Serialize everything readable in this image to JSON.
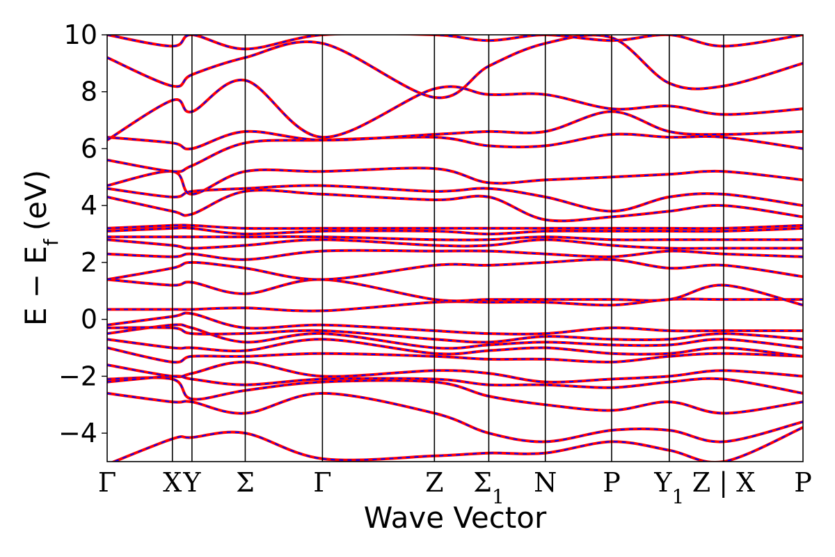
{
  "chart_data": {
    "type": "line",
    "title": "",
    "xlabel": "Wave Vector",
    "ylabel": "E − E",
    "ylabel_subscript": "f",
    "ylabel_unit": "(eV)",
    "ylim": [
      -5,
      10
    ],
    "yticks": [
      -4,
      -2,
      0,
      2,
      4,
      6,
      8,
      10
    ],
    "ytick_labels": [
      "−4",
      "−2",
      "0",
      "2",
      "4",
      "6",
      "8",
      "10"
    ],
    "xlim": [
      0,
      6.4
    ],
    "kpoints": [
      {
        "label": "Γ",
        "sub": "",
        "x": 0.0
      },
      {
        "label": "X",
        "sub": "",
        "x": 0.6
      },
      {
        "label": "Y",
        "sub": "",
        "x": 0.78
      },
      {
        "label": "Σ",
        "sub": "",
        "x": 1.27
      },
      {
        "label": "Γ",
        "sub": "",
        "x": 1.98
      },
      {
        "label": "Z",
        "sub": "",
        "x": 3.01
      },
      {
        "label": "Σ",
        "sub": "1",
        "x": 3.51
      },
      {
        "label": "N",
        "sub": "",
        "x": 4.03
      },
      {
        "label": "P",
        "sub": "",
        "x": 4.64
      },
      {
        "label": "Y",
        "sub": "1",
        "x": 5.17
      },
      {
        "label": "Z | X",
        "sub": "",
        "x": 5.67
      },
      {
        "label": "P",
        "sub": "",
        "x": 6.4
      }
    ],
    "series_colors": {
      "solid": "#ff0000",
      "dashed": "#0000ff"
    },
    "bands": [
      {
        "x": [
          0,
          0.6,
          0.78,
          1.27,
          1.98,
          3.01,
          3.51,
          4.03,
          4.64,
          5.17,
          5.67,
          6.4
        ],
        "y": [
          -5.1,
          -4.2,
          -4.15,
          -4.0,
          -4.9,
          -4.8,
          -4.7,
          -4.7,
          -4.3,
          -4.6,
          -5.0,
          -3.8
        ]
      },
      {
        "x": [
          0,
          0.6,
          0.78,
          1.27,
          1.98,
          3.01,
          3.51,
          4.03,
          4.64,
          5.17,
          5.67,
          6.4
        ],
        "y": [
          -2.6,
          -2.9,
          -2.9,
          -3.3,
          -2.6,
          -3.3,
          -4.0,
          -4.3,
          -3.9,
          -3.9,
          -4.3,
          -3.6
        ]
      },
      {
        "x": [
          0,
          0.6,
          0.78,
          1.27,
          1.98,
          3.01,
          3.51,
          4.03,
          4.64,
          5.17,
          5.67,
          6.4
        ],
        "y": [
          -2.1,
          -2.1,
          -2.8,
          -2.5,
          -2.2,
          -2.2,
          -2.7,
          -3.0,
          -3.2,
          -2.9,
          -3.3,
          -2.9
        ]
      },
      {
        "x": [
          0,
          0.6,
          0.78,
          1.27,
          1.98,
          3.01,
          3.51,
          4.03,
          4.64,
          5.17,
          5.67,
          6.4
        ],
        "y": [
          -2.2,
          -2.0,
          -2.1,
          -2.3,
          -2.1,
          -2.1,
          -2.3,
          -2.3,
          -2.4,
          -2.2,
          -2.1,
          -2.6
        ]
      },
      {
        "x": [
          0,
          0.6,
          0.78,
          1.27,
          1.98,
          3.01,
          3.51,
          4.03,
          4.64,
          5.17,
          5.67,
          6.4
        ],
        "y": [
          -1.6,
          -2.0,
          -1.9,
          -1.5,
          -2.0,
          -1.8,
          -1.9,
          -2.2,
          -2.1,
          -2.0,
          -1.8,
          -2.0
        ]
      },
      {
        "x": [
          0,
          0.6,
          0.78,
          1.27,
          1.98,
          3.01,
          3.51,
          4.03,
          4.64,
          5.17,
          5.67,
          6.4
        ],
        "y": [
          -1.0,
          -1.5,
          -1.3,
          -1.3,
          -1.2,
          -1.3,
          -1.4,
          -1.4,
          -1.5,
          -1.3,
          -1.2,
          -1.3
        ]
      },
      {
        "x": [
          0,
          0.6,
          0.78,
          1.27,
          1.98,
          3.01,
          3.51,
          4.03,
          4.64,
          5.17,
          5.67,
          6.4
        ],
        "y": [
          -0.7,
          -1.0,
          -1.0,
          -1.1,
          -0.7,
          -1.2,
          -1.1,
          -1.0,
          -1.2,
          -1.2,
          -1.0,
          -1.3
        ]
      },
      {
        "x": [
          0,
          0.6,
          0.78,
          1.27,
          1.98,
          3.01,
          3.51,
          4.03,
          4.64,
          5.17,
          5.67,
          6.4
        ],
        "y": [
          -0.5,
          -0.2,
          -0.3,
          -0.8,
          -0.5,
          -1.0,
          -0.9,
          -0.8,
          -0.9,
          -0.9,
          -0.7,
          -1.0
        ]
      },
      {
        "x": [
          0,
          0.6,
          0.78,
          1.27,
          1.98,
          3.01,
          3.51,
          4.03,
          4.64,
          5.17,
          5.67,
          6.4
        ],
        "y": [
          -0.3,
          -0.3,
          -0.5,
          -0.5,
          -0.4,
          -0.7,
          -0.8,
          -0.6,
          -0.7,
          -0.7,
          -0.5,
          -0.7
        ]
      },
      {
        "x": [
          0,
          0.6,
          0.78,
          1.27,
          1.98,
          3.01,
          3.51,
          4.03,
          4.64,
          5.17,
          5.67,
          6.4
        ],
        "y": [
          -0.2,
          0.1,
          0.2,
          -0.3,
          -0.2,
          -0.4,
          -0.5,
          -0.5,
          -0.3,
          -0.4,
          -0.4,
          -0.4
        ]
      },
      {
        "x": [
          0,
          0.6,
          0.78,
          1.27,
          1.98,
          3.01,
          3.51,
          4.03,
          4.64,
          5.17,
          5.67,
          6.4
        ],
        "y": [
          0.35,
          0.35,
          0.35,
          0.4,
          0.3,
          0.6,
          0.6,
          0.6,
          0.5,
          0.7,
          0.7,
          0.7
        ]
      },
      {
        "x": [
          0,
          0.6,
          0.78,
          1.27,
          1.98,
          3.01,
          3.51,
          4.03,
          4.64,
          5.17,
          5.67,
          6.4
        ],
        "y": [
          1.4,
          1.2,
          1.3,
          0.9,
          1.4,
          0.7,
          0.7,
          0.7,
          0.7,
          0.7,
          1.2,
          0.5
        ]
      },
      {
        "x": [
          0,
          0.6,
          0.78,
          1.27,
          1.98,
          3.01,
          3.51,
          4.03,
          4.64,
          5.17,
          5.67,
          6.4
        ],
        "y": [
          1.4,
          1.8,
          2.0,
          1.8,
          1.4,
          1.9,
          1.9,
          2.0,
          2.1,
          1.8,
          1.9,
          1.5
        ]
      },
      {
        "x": [
          0,
          0.6,
          0.78,
          1.27,
          1.98,
          3.01,
          3.51,
          4.03,
          4.64,
          5.17,
          5.67,
          6.4
        ],
        "y": [
          2.3,
          2.2,
          2.3,
          2.1,
          2.4,
          2.4,
          2.4,
          2.3,
          2.2,
          2.4,
          2.3,
          2.2
        ]
      },
      {
        "x": [
          0,
          0.6,
          0.78,
          1.27,
          1.98,
          3.01,
          3.51,
          4.03,
          4.64,
          5.17,
          5.67,
          6.4
        ],
        "y": [
          2.8,
          2.6,
          2.5,
          2.6,
          2.8,
          2.6,
          2.6,
          2.8,
          2.6,
          2.5,
          2.5,
          2.5
        ]
      },
      {
        "x": [
          0,
          0.6,
          0.78,
          1.27,
          1.98,
          3.01,
          3.51,
          4.03,
          4.64,
          5.17,
          5.67,
          6.4
        ],
        "y": [
          2.9,
          2.9,
          2.9,
          2.9,
          2.9,
          2.8,
          2.8,
          2.9,
          2.8,
          2.8,
          2.8,
          2.8
        ]
      },
      {
        "x": [
          0,
          0.6,
          0.78,
          1.27,
          1.98,
          3.01,
          3.51,
          4.03,
          4.64,
          5.17,
          5.67,
          6.4
        ],
        "y": [
          3.1,
          3.2,
          3.2,
          3.0,
          3.1,
          3.1,
          3.0,
          3.1,
          3.1,
          3.1,
          3.1,
          3.2
        ]
      },
      {
        "x": [
          0,
          0.6,
          0.78,
          1.27,
          1.98,
          3.01,
          3.51,
          4.03,
          4.64,
          5.17,
          5.67,
          6.4
        ],
        "y": [
          3.2,
          3.3,
          3.3,
          3.2,
          3.2,
          3.2,
          3.2,
          3.2,
          3.2,
          3.2,
          3.2,
          3.3
        ]
      },
      {
        "x": [
          0,
          0.6,
          0.78,
          1.27,
          1.98,
          3.01,
          3.51,
          4.03,
          4.64,
          5.17,
          5.67,
          6.4
        ],
        "y": [
          4.3,
          3.8,
          3.7,
          4.5,
          4.4,
          4.2,
          4.3,
          3.5,
          3.6,
          3.8,
          4.0,
          3.6
        ]
      },
      {
        "x": [
          0,
          0.6,
          0.78,
          1.27,
          1.98,
          3.01,
          3.51,
          4.03,
          4.64,
          5.17,
          5.67,
          6.4
        ],
        "y": [
          4.6,
          4.3,
          4.5,
          4.6,
          4.7,
          4.5,
          4.6,
          4.3,
          3.8,
          4.3,
          4.4,
          4.0
        ]
      },
      {
        "x": [
          0,
          0.6,
          0.78,
          1.27,
          1.98,
          3.01,
          3.51,
          4.03,
          4.64,
          5.17,
          5.67,
          6.4
        ],
        "y": [
          4.7,
          5.2,
          4.4,
          5.2,
          5.2,
          5.3,
          4.8,
          4.9,
          5.0,
          5.1,
          5.2,
          4.9
        ]
      },
      {
        "x": [
          0,
          0.6,
          0.78,
          1.27,
          1.98,
          3.01,
          3.51,
          4.03,
          4.64,
          5.17,
          5.67,
          6.4
        ],
        "y": [
          5.6,
          5.2,
          5.4,
          6.2,
          6.3,
          6.4,
          6.1,
          6.1,
          6.5,
          6.4,
          6.4,
          6.0
        ]
      },
      {
        "x": [
          0,
          0.6,
          0.78,
          1.27,
          1.98,
          3.01,
          3.51,
          4.03,
          4.64,
          5.17,
          5.67,
          6.4
        ],
        "y": [
          6.4,
          6.2,
          6.0,
          6.6,
          6.3,
          6.5,
          6.6,
          6.6,
          7.3,
          6.6,
          6.5,
          6.6
        ]
      },
      {
        "x": [
          0,
          0.6,
          0.78,
          1.27,
          1.98,
          3.01,
          3.51,
          4.03,
          4.64,
          5.17,
          5.67,
          6.4
        ],
        "y": [
          6.3,
          7.7,
          7.3,
          8.4,
          6.4,
          8.1,
          7.9,
          7.9,
          7.4,
          7.5,
          7.2,
          7.4
        ]
      },
      {
        "x": [
          0,
          0.6,
          0.78,
          1.27,
          1.98,
          3.01,
          3.51,
          4.03,
          4.64,
          5.17,
          5.67,
          6.4
        ],
        "y": [
          9.2,
          8.2,
          8.6,
          9.2,
          9.7,
          7.8,
          8.9,
          9.7,
          9.9,
          8.3,
          8.2,
          9.0
        ]
      },
      {
        "x": [
          0,
          0.6,
          0.78,
          1.27,
          1.98,
          3.01,
          3.51,
          4.03,
          4.64,
          5.17,
          5.67,
          6.4
        ],
        "y": [
          10.0,
          9.6,
          10.0,
          9.5,
          10.0,
          10.0,
          9.8,
          10.0,
          9.8,
          10.0,
          9.6,
          10.0
        ]
      }
    ]
  }
}
